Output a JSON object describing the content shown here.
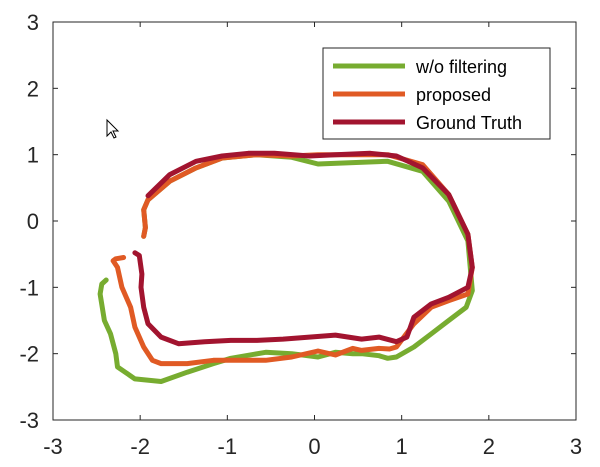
{
  "chart_data": {
    "type": "line",
    "title": "",
    "xlabel": "",
    "ylabel": "",
    "xlim": [
      -3,
      3
    ],
    "ylim": [
      -3,
      3
    ],
    "grid": false,
    "legend_position": "top-right",
    "x_ticks": [
      "-3",
      "-2",
      "-1",
      "0",
      "1",
      "2",
      "3"
    ],
    "y_ticks": [
      "3",
      "2",
      "1",
      "0",
      "-1",
      "-2",
      "-3"
    ],
    "series": [
      {
        "name": "w/o filtering",
        "color": "#77ac30",
        "x": [
          -1.96,
          -1.94,
          -1.96,
          -1.91,
          -1.66,
          -1.36,
          -1.06,
          -0.66,
          -0.26,
          0.04,
          0.44,
          0.84,
          1.24,
          1.54,
          1.76,
          1.81,
          1.74,
          1.54,
          1.34,
          1.14,
          0.94,
          0.84,
          0.74,
          0.54,
          0.44,
          0.24,
          0.04,
          -0.26,
          -0.56,
          -0.96,
          -1.16,
          -1.46,
          -1.76,
          -2.06,
          -2.26,
          -2.28,
          -2.34,
          -2.41,
          -2.46,
          -2.44,
          -2.39
        ],
        "y": [
          -0.23,
          -0.1,
          0.17,
          0.32,
          0.6,
          0.8,
          0.95,
          1.0,
          0.96,
          0.86,
          0.88,
          0.9,
          0.75,
          0.3,
          -0.3,
          -1.05,
          -1.3,
          -1.5,
          -1.7,
          -1.9,
          -2.05,
          -2.07,
          -2.03,
          -2.0,
          -2.0,
          -1.98,
          -2.05,
          -2.0,
          -1.98,
          -2.07,
          -2.15,
          -2.28,
          -2.42,
          -2.38,
          -2.2,
          -2.0,
          -1.7,
          -1.5,
          -1.1,
          -0.95,
          -0.89
        ]
      },
      {
        "name": "proposed",
        "color": "#e05a24",
        "x": [
          -1.96,
          -1.94,
          -1.96,
          -1.91,
          -1.66,
          -1.36,
          -1.06,
          -0.66,
          -0.26,
          0.04,
          0.44,
          0.84,
          1.24,
          1.54,
          1.76,
          1.81,
          1.76,
          1.54,
          1.34,
          1.14,
          0.94,
          0.86,
          0.74,
          0.54,
          0.44,
          0.24,
          0.04,
          -0.26,
          -0.56,
          -0.96,
          -1.16,
          -1.46,
          -1.76,
          -1.86,
          -1.96,
          -2.06,
          -2.11,
          -2.21,
          -2.26,
          -2.31,
          -2.28,
          -2.19
        ],
        "y": [
          -0.23,
          -0.1,
          0.17,
          0.32,
          0.6,
          0.8,
          0.95,
          1.0,
          0.98,
          1.0,
          1.0,
          1.0,
          0.85,
          0.4,
          -0.2,
          -0.7,
          -1.1,
          -1.2,
          -1.3,
          -1.55,
          -1.9,
          -1.93,
          -1.92,
          -1.95,
          -1.92,
          -2.02,
          -1.96,
          -2.05,
          -2.1,
          -2.1,
          -2.1,
          -2.15,
          -2.15,
          -2.1,
          -1.9,
          -1.6,
          -1.3,
          -1.0,
          -0.7,
          -0.6,
          -0.57,
          -0.55
        ]
      },
      {
        "name": "Ground Truth",
        "color": "#a2142f",
        "x": [
          -1.91,
          -1.66,
          -1.36,
          -1.06,
          -0.76,
          -0.46,
          -0.06,
          0.24,
          0.64,
          0.94,
          1.24,
          1.54,
          1.76,
          1.81,
          1.76,
          1.54,
          1.34,
          1.14,
          1.06,
          0.94,
          0.74,
          0.54,
          0.24,
          -0.06,
          -0.36,
          -0.66,
          -0.96,
          -1.26,
          -1.56,
          -1.76,
          -1.91,
          -1.96,
          -1.99,
          -1.98,
          -2.01,
          -2.06
        ],
        "y": [
          0.38,
          0.7,
          0.9,
          0.98,
          1.02,
          1.02,
          0.98,
          1.0,
          1.02,
          0.98,
          0.8,
          0.4,
          -0.2,
          -0.7,
          -1.0,
          -1.15,
          -1.25,
          -1.45,
          -1.75,
          -1.82,
          -1.75,
          -1.78,
          -1.72,
          -1.75,
          -1.78,
          -1.8,
          -1.8,
          -1.82,
          -1.85,
          -1.75,
          -1.55,
          -1.3,
          -1.0,
          -0.8,
          -0.52,
          -0.48
        ]
      }
    ]
  }
}
